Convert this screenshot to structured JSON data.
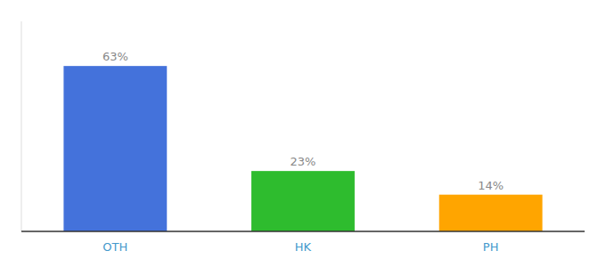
{
  "chart_data": {
    "type": "bar",
    "categories": [
      "OTH",
      "HK",
      "PH"
    ],
    "values": [
      63,
      23,
      14
    ],
    "value_labels": [
      "63%",
      "23%",
      "14%"
    ],
    "colors": [
      "#4472db",
      "#2ebc2e",
      "#ffa500"
    ],
    "ylim": [
      0,
      80
    ],
    "data_labels": true,
    "tick_labels": "x",
    "grid": false
  }
}
